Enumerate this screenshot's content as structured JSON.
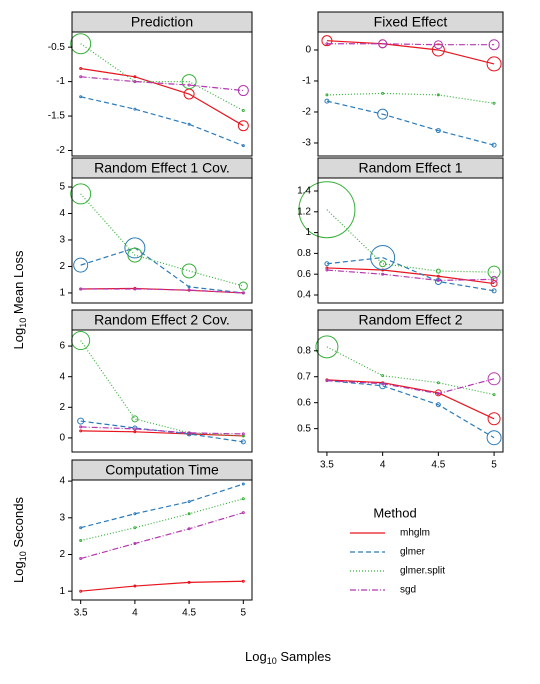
{
  "chart_data": [
    {
      "type": "line",
      "title": "Prediction",
      "x": [
        3.5,
        4,
        4.5,
        5
      ],
      "xlim": [
        3.42,
        5.08
      ],
      "xticks": [
        3.5,
        4,
        4.5,
        5
      ],
      "ylim": [
        -2.08,
        -0.28
      ],
      "yticks": [
        -0.5,
        -1,
        -1.5,
        -2
      ],
      "series": [
        {
          "name": "mhglm",
          "color": "#e8141e",
          "line_style": "solid",
          "values": [
            -0.81,
            -0.93,
            -1.18,
            -1.64
          ],
          "sizes": [
            1,
            1,
            5,
            5
          ]
        },
        {
          "name": "glmer",
          "color": "#2b7bba",
          "line_style": "dashed",
          "values": [
            -1.22,
            -1.4,
            -1.62,
            -1.93
          ],
          "sizes": [
            1,
            1,
            1,
            1
          ]
        },
        {
          "name": "glmer.split",
          "color": "#36b03a",
          "line_style": "dotted",
          "values": [
            -0.45,
            -1.0,
            -1.0,
            -1.42
          ],
          "sizes": [
            10,
            1,
            7,
            1
          ]
        },
        {
          "name": "sgd",
          "color": "#b438b0",
          "line_style": "dotdash",
          "values": [
            -0.93,
            -1.0,
            -1.05,
            -1.13
          ],
          "sizes": [
            1,
            1,
            1,
            5
          ]
        }
      ]
    },
    {
      "type": "line",
      "title": "Fixed Effect",
      "x": [
        3.5,
        4,
        4.5,
        5
      ],
      "xlim": [
        3.42,
        5.08
      ],
      "xticks": [
        3.5,
        4,
        4.5,
        5
      ],
      "ylim": [
        -3.42,
        0.58
      ],
      "yticks": [
        0,
        -1,
        -2,
        -3
      ],
      "series": [
        {
          "name": "mhglm",
          "color": "#e8141e",
          "line_style": "solid",
          "values": [
            0.3,
            0.2,
            0.0,
            -0.45
          ],
          "sizes": [
            5,
            4,
            6,
            7
          ]
        },
        {
          "name": "glmer",
          "color": "#2b7bba",
          "line_style": "dashed",
          "values": [
            -1.65,
            -2.07,
            -2.6,
            -3.07
          ],
          "sizes": [
            2,
            5,
            2,
            2
          ]
        },
        {
          "name": "glmer.split",
          "color": "#36b03a",
          "line_style": "dotted",
          "values": [
            -1.45,
            -1.4,
            -1.45,
            -1.72
          ],
          "sizes": [
            1,
            1,
            1,
            1
          ]
        },
        {
          "name": "sgd",
          "color": "#b438b0",
          "line_style": "dotdash",
          "values": [
            0.2,
            0.2,
            0.17,
            0.17
          ],
          "sizes": [
            1,
            4,
            4,
            5
          ]
        }
      ]
    },
    {
      "type": "line",
      "title": "Random Effect 1 Cov.",
      "x": [
        3.5,
        4,
        4.5,
        5
      ],
      "xlim": [
        3.42,
        5.08
      ],
      "xticks": [
        3.5,
        4,
        4.5,
        5
      ],
      "ylim": [
        0.62,
        5.34
      ],
      "yticks": [
        5,
        4,
        3,
        2,
        1
      ],
      "series": [
        {
          "name": "mhglm",
          "color": "#e8141e",
          "line_style": "solid",
          "values": [
            1.15,
            1.17,
            1.1,
            1.0
          ],
          "sizes": [
            1,
            1,
            1,
            1
          ]
        },
        {
          "name": "glmer",
          "color": "#2b7bba",
          "line_style": "dashed",
          "values": [
            2.05,
            2.7,
            1.23,
            1.0
          ],
          "sizes": [
            7,
            10,
            1,
            1
          ]
        },
        {
          "name": "glmer.split",
          "color": "#36b03a",
          "line_style": "dotted",
          "values": [
            4.74,
            2.43,
            1.83,
            1.26
          ],
          "sizes": [
            10,
            7,
            7,
            4
          ]
        },
        {
          "name": "sgd",
          "color": "#b438b0",
          "line_style": "dotdash",
          "values": [
            1.15,
            1.15,
            1.11,
            1.0
          ],
          "sizes": [
            1,
            1,
            1,
            1
          ]
        }
      ]
    },
    {
      "type": "line",
      "title": "Random Effect 1",
      "x": [
        3.5,
        4,
        4.5,
        5
      ],
      "xlim": [
        3.42,
        5.08
      ],
      "xticks": [
        3.5,
        4,
        4.5,
        5
      ],
      "ylim": [
        0.323,
        1.525
      ],
      "yticks": [
        1.4,
        1.2,
        1.0,
        0.8,
        0.6,
        0.4
      ],
      "series": [
        {
          "name": "mhglm",
          "color": "#e8141e",
          "line_style": "solid",
          "values": [
            0.66,
            0.64,
            0.58,
            0.51
          ],
          "sizes": [
            1,
            1,
            1,
            3
          ]
        },
        {
          "name": "glmer",
          "color": "#2b7bba",
          "line_style": "dashed",
          "values": [
            0.7,
            0.76,
            0.53,
            0.44
          ],
          "sizes": [
            2,
            12,
            3,
            2
          ]
        },
        {
          "name": "glmer.split",
          "color": "#36b03a",
          "line_style": "dotted",
          "values": [
            1.22,
            0.7,
            0.63,
            0.62
          ],
          "sizes": [
            28,
            3,
            2,
            6
          ]
        },
        {
          "name": "sgd",
          "color": "#b438b0",
          "line_style": "dotdash",
          "values": [
            0.64,
            0.6,
            0.54,
            0.55
          ],
          "sizes": [
            1,
            1,
            1,
            3
          ]
        }
      ]
    },
    {
      "type": "line",
      "title": "Random Effect 2 Cov.",
      "x": [
        3.5,
        4,
        4.5,
        5
      ],
      "xlim": [
        3.42,
        5.08
      ],
      "xticks": [
        3.5,
        4,
        4.5,
        5
      ],
      "ylim": [
        -0.92,
        7.05
      ],
      "yticks": [
        6,
        4,
        2,
        0
      ],
      "series": [
        {
          "name": "mhglm",
          "color": "#e8141e",
          "line_style": "solid",
          "values": [
            0.46,
            0.4,
            0.26,
            0.13
          ],
          "sizes": [
            1,
            1,
            1,
            1
          ]
        },
        {
          "name": "glmer",
          "color": "#2b7bba",
          "line_style": "dashed",
          "values": [
            1.1,
            0.65,
            0.26,
            -0.26
          ],
          "sizes": [
            3,
            2,
            2,
            2
          ]
        },
        {
          "name": "glmer.split",
          "color": "#36b03a",
          "line_style": "dotted",
          "values": [
            6.36,
            1.24,
            0.33,
            0.13
          ],
          "sizes": [
            9,
            3,
            1,
            1
          ]
        },
        {
          "name": "sgd",
          "color": "#b438b0",
          "line_style": "dotdash",
          "values": [
            0.72,
            0.59,
            0.33,
            0.26
          ],
          "sizes": [
            1,
            1,
            1,
            1
          ]
        }
      ]
    },
    {
      "type": "line",
      "title": "Random Effect 2",
      "x": [
        3.5,
        4,
        4.5,
        5
      ],
      "xlim": [
        3.42,
        5.08
      ],
      "xticks": [
        3.5,
        4,
        4.5,
        5
      ],
      "ylim": [
        0.41,
        0.88
      ],
      "yticks": [
        0.8,
        0.7,
        0.6,
        0.5
      ],
      "series": [
        {
          "name": "mhglm",
          "color": "#e8141e",
          "line_style": "solid",
          "values": [
            0.688,
            0.677,
            0.638,
            0.538
          ],
          "sizes": [
            1,
            1,
            3,
            6
          ]
        },
        {
          "name": "glmer",
          "color": "#2b7bba",
          "line_style": "dashed",
          "values": [
            0.685,
            0.665,
            0.592,
            0.465
          ],
          "sizes": [
            1,
            3,
            2,
            7
          ]
        },
        {
          "name": "glmer.split",
          "color": "#36b03a",
          "line_style": "dotted",
          "values": [
            0.815,
            0.704,
            0.677,
            0.631
          ],
          "sizes": [
            11,
            1,
            1,
            1
          ]
        },
        {
          "name": "sgd",
          "color": "#b438b0",
          "line_style": "dotdash",
          "values": [
            0.685,
            0.673,
            0.635,
            0.692
          ],
          "sizes": [
            1,
            1,
            1,
            6
          ]
        }
      ]
    },
    {
      "type": "line",
      "title": "Computation Time",
      "x": [
        3.5,
        4,
        4.5,
        5
      ],
      "xlim": [
        3.42,
        5.08
      ],
      "xticks": [
        3.5,
        4,
        4.5,
        5
      ],
      "ylim": [
        0.76,
        4.03
      ],
      "yticks": [
        4,
        3,
        2,
        1
      ],
      "series": [
        {
          "name": "mhglm",
          "color": "#e8141e",
          "line_style": "solid",
          "values": [
            1.0,
            1.14,
            1.24,
            1.27
          ],
          "sizes": [
            1,
            1,
            1,
            1
          ]
        },
        {
          "name": "glmer",
          "color": "#2b7bba",
          "line_style": "dashed",
          "values": [
            2.73,
            3.11,
            3.44,
            3.92
          ],
          "sizes": [
            1,
            1,
            1,
            1
          ]
        },
        {
          "name": "glmer.split",
          "color": "#36b03a",
          "line_style": "dotted",
          "values": [
            2.38,
            2.73,
            3.11,
            3.52
          ],
          "sizes": [
            1,
            1,
            1,
            1
          ]
        },
        {
          "name": "sgd",
          "color": "#b438b0",
          "line_style": "dotdash",
          "values": [
            1.89,
            2.3,
            2.7,
            3.14
          ],
          "sizes": [
            1,
            1,
            1,
            1
          ]
        }
      ]
    }
  ],
  "labels": {
    "loss": [
      "Log",
      "10",
      " Mean Loss"
    ],
    "time": [
      "Log",
      "10",
      " Seconds"
    ],
    "samples": [
      "Log",
      "10",
      " Samples"
    ]
  },
  "legend": {
    "title": "Method"
  }
}
